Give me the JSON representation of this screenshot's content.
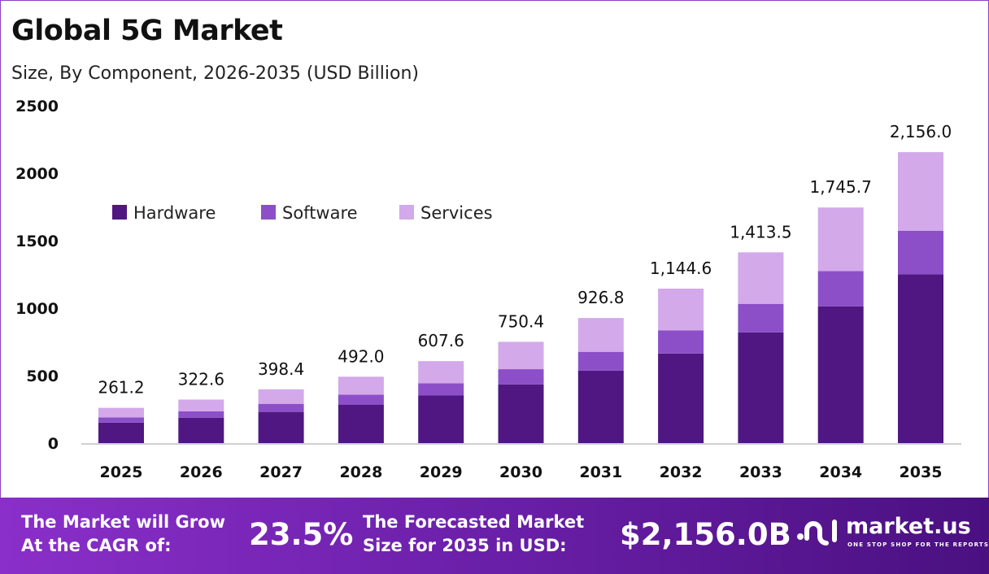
{
  "title": "Global 5G Market",
  "subtitle": "Size, By Component, 2026-2035 (USD Billion)",
  "chart_data": {
    "type": "bar",
    "stacked": true,
    "categories": [
      "2025",
      "2026",
      "2027",
      "2028",
      "2029",
      "2030",
      "2031",
      "2032",
      "2033",
      "2034",
      "2035"
    ],
    "series": [
      {
        "name": "Hardware",
        "color": "#501681",
        "values": [
          151.5,
          187.1,
          231.1,
          285.4,
          352.4,
          435.2,
          537.5,
          663.9,
          819.8,
          1012.5,
          1250.5
        ]
      },
      {
        "name": "Software",
        "color": "#8c4fc8",
        "values": [
          39.2,
          48.4,
          59.8,
          73.8,
          91.1,
          112.6,
          139.0,
          171.7,
          212.0,
          261.9,
          323.4
        ]
      },
      {
        "name": "Services",
        "color": "#d3a9ea",
        "values": [
          70.5,
          87.1,
          107.5,
          132.8,
          164.1,
          202.6,
          250.3,
          309.0,
          381.7,
          471.3,
          582.1
        ]
      }
    ],
    "totals": [
      "261.2",
      "322.6",
      "398.4",
      "492.0",
      "607.6",
      "750.4",
      "926.8",
      "1,144.6",
      "1,413.5",
      "1,745.7",
      "2,156.0"
    ],
    "yticks": [
      "0",
      "500",
      "1000",
      "1500",
      "2000",
      "2500"
    ],
    "ylim": [
      0,
      2500
    ],
    "grid": false,
    "legend_position": "top-left"
  },
  "banner": {
    "cagr_label_1": "The Market will Grow",
    "cagr_label_2": "At the CAGR of:",
    "cagr_value": "23.5%",
    "forecast_label_1": "The Forecasted Market",
    "forecast_label_2": "Size for 2035 in USD:",
    "forecast_value": "$2,156.0B",
    "logo_text": "market.us",
    "logo_tagline": "ONE STOP SHOP FOR THE REPORTS"
  }
}
